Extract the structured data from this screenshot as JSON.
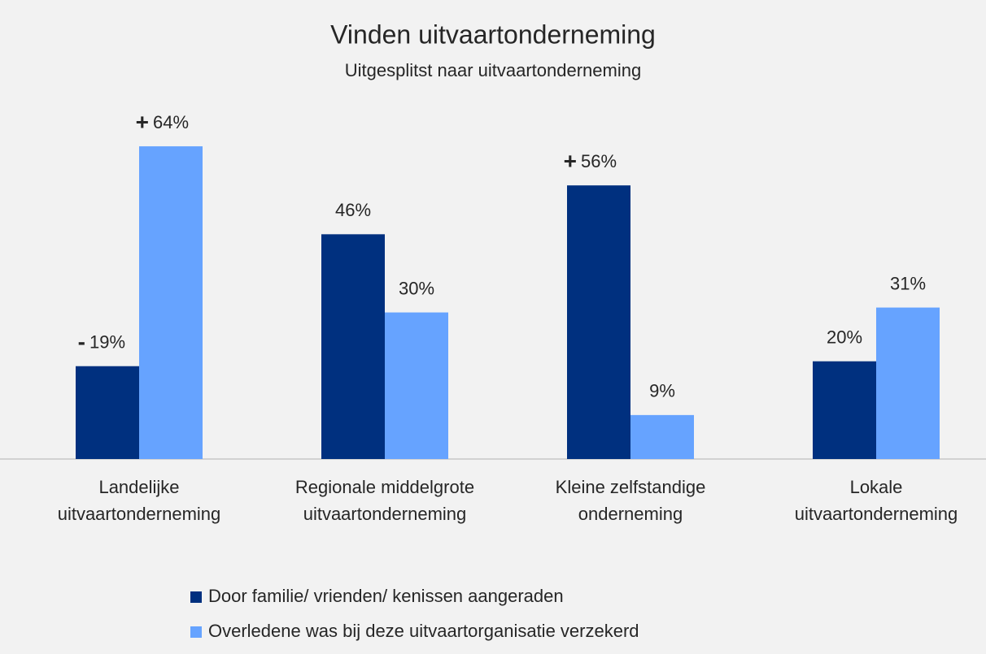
{
  "chart_data": {
    "type": "bar",
    "title": "Vinden uitvaartonderneming",
    "subtitle": "Uitgesplitst naar uitvaartonderneming",
    "categories": [
      "Landelijke\nuitvaartonderneming",
      "Regionale middelgrote\nuitvaartonderneming",
      "Kleine zelfstandige\nonderneming",
      "Lokale\nuitvaartonderneming"
    ],
    "series": [
      {
        "name": "Door familie/ vrienden/ kenissen aangeraden",
        "color": "#00307f",
        "values": [
          19,
          46,
          56,
          20
        ],
        "value_labels": [
          "19%",
          "46%",
          "56%",
          "20%"
        ],
        "significance": [
          "-",
          null,
          "+",
          null
        ]
      },
      {
        "name": "Overledene was bij deze uitvaartorganisatie verzekerd",
        "color": "#66a3ff",
        "values": [
          64,
          30,
          9,
          31
        ],
        "value_labels": [
          "64%",
          "30%",
          "9%",
          "31%"
        ],
        "significance": [
          "+",
          null,
          null,
          null
        ]
      }
    ],
    "ylim": [
      0,
      70
    ]
  }
}
